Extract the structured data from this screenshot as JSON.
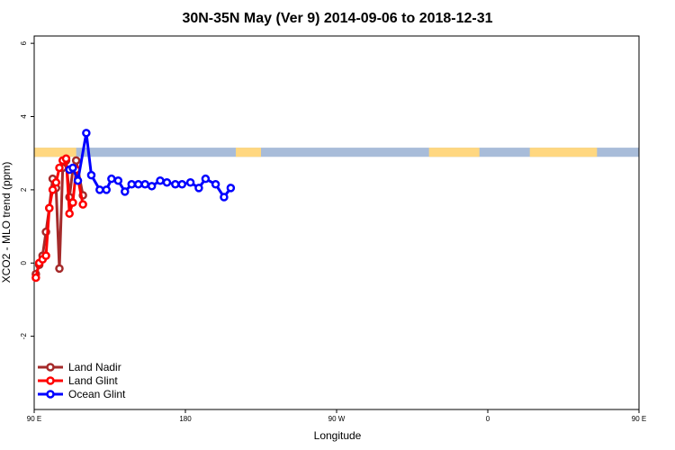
{
  "chart_data": {
    "type": "line",
    "title": "30N-35N May (Ver 9)   2014-09-06 to 2018-12-31",
    "xlabel": "Longitude",
    "ylabel": "XCO2 - MLO trend (ppm)",
    "xlim": [
      90,
      450
    ],
    "ylim": [
      -4,
      6.2
    ],
    "xticks": [
      {
        "value": 90,
        "label": "90 E"
      },
      {
        "value": 180,
        "label": "180"
      },
      {
        "value": 270,
        "label": "90 W"
      },
      {
        "value": 360,
        "label": "0"
      },
      {
        "value": 450,
        "label": "90 E"
      },
      {
        "value": 540,
        "label": "180"
      }
    ],
    "yticks": [
      {
        "value": -2,
        "label": "-2"
      },
      {
        "value": 0,
        "label": "0"
      },
      {
        "value": 2,
        "label": "2"
      },
      {
        "value": 4,
        "label": "4"
      },
      {
        "value": 6,
        "label": "6"
      }
    ],
    "legend_position": "bottom-left",
    "land_ocean_band": {
      "y_range": [
        2.9,
        3.15
      ],
      "land_color": "#ffd780",
      "ocean_color": "#a8bcd9",
      "land_ranges_lon": [
        [
          90,
          115
        ],
        [
          210,
          225
        ],
        [
          325,
          355
        ],
        [
          385,
          425
        ]
      ]
    },
    "series": [
      {
        "name": "Land Nadir",
        "color": "#a52a2a",
        "x": [
          91,
          93,
          95,
          97,
          99,
          101,
          103,
          105,
          107,
          109,
          111,
          113,
          115,
          119
        ],
        "y": [
          -0.3,
          -0.05,
          0.2,
          0.85,
          1.5,
          2.3,
          2.05,
          -0.15,
          2.6,
          2.8,
          1.8,
          2.55,
          2.8,
          1.85
        ]
      },
      {
        "name": "Land Glint",
        "color": "#ff0000",
        "x": [
          91,
          93,
          95,
          97,
          99,
          101,
          103,
          105,
          107,
          109,
          111,
          113,
          115,
          119
        ],
        "y": [
          -0.4,
          0.0,
          0.1,
          0.2,
          1.5,
          2.0,
          2.2,
          2.6,
          2.8,
          2.85,
          1.35,
          1.65,
          2.55,
          1.6
        ]
      },
      {
        "name": "Ocean Glint",
        "color": "#0000ff",
        "x": [
          111,
          113,
          116,
          121,
          124,
          129,
          133,
          136,
          140,
          144,
          148,
          152,
          156,
          160,
          165,
          169,
          174,
          178,
          183,
          188,
          192,
          198,
          203,
          207
        ],
        "y": [
          2.55,
          2.6,
          2.25,
          3.55,
          2.4,
          2.0,
          2.0,
          2.3,
          2.25,
          1.95,
          2.15,
          2.15,
          2.15,
          2.1,
          2.25,
          2.2,
          2.15,
          2.15,
          2.2,
          2.05,
          2.3,
          2.15,
          1.8,
          2.05
        ]
      }
    ],
    "legend": [
      {
        "label": "Land Nadir",
        "color": "#a52a2a"
      },
      {
        "label": "Land Glint",
        "color": "#ff0000"
      },
      {
        "label": "Ocean Glint",
        "color": "#0000ff"
      }
    ]
  }
}
